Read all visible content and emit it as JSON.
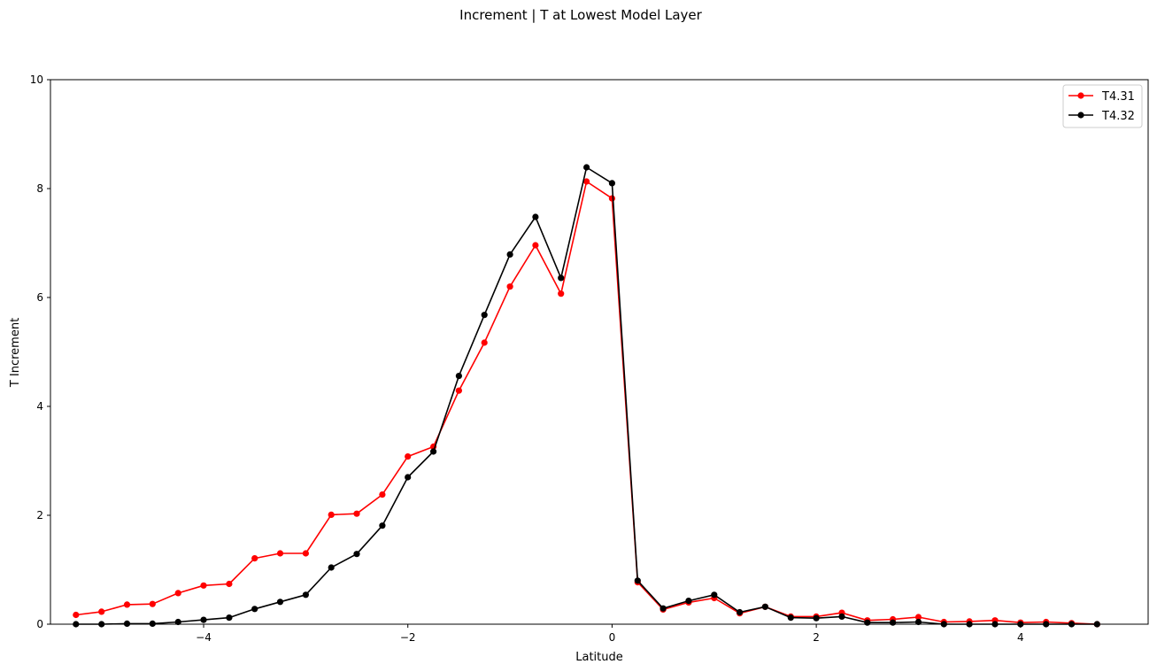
{
  "chart_data": {
    "type": "line",
    "title": "Increment | T at Lowest Model Layer",
    "xlabel": "Latitude",
    "ylabel": "T Increment",
    "xlim": [
      -5.5,
      5.25
    ],
    "ylim": [
      0,
      10
    ],
    "xticks": [
      -4,
      -2,
      0,
      2,
      4
    ],
    "yticks": [
      0,
      2,
      4,
      6,
      8,
      10
    ],
    "grid": false,
    "legend_position": "top-right",
    "x": [
      -5.25,
      -5.0,
      -4.75,
      -4.5,
      -4.25,
      -4.0,
      -3.75,
      -3.5,
      -3.25,
      -3.0,
      -2.75,
      -2.5,
      -2.25,
      -2.0,
      -1.75,
      -1.5,
      -1.25,
      -1.0,
      -0.75,
      -0.5,
      -0.25,
      0.0,
      0.25,
      0.5,
      0.75,
      1.0,
      1.25,
      1.5,
      1.75,
      2.0,
      2.25,
      2.5,
      2.75,
      3.0,
      3.25,
      3.5,
      3.75,
      4.0,
      4.25,
      4.5,
      4.75
    ],
    "series": [
      {
        "name": "T4.31",
        "color": "#ff0000",
        "values": [
          0.17,
          0.23,
          0.36,
          0.37,
          0.57,
          0.71,
          0.74,
          1.21,
          1.3,
          1.3,
          2.01,
          2.03,
          2.38,
          3.08,
          3.26,
          4.29,
          5.17,
          6.2,
          6.96,
          6.07,
          8.13,
          7.82,
          0.77,
          0.27,
          0.4,
          0.48,
          0.2,
          0.32,
          0.14,
          0.14,
          0.21,
          0.07,
          0.09,
          0.13,
          0.04,
          0.05,
          0.07,
          0.03,
          0.04,
          0.02,
          0.0
        ]
      },
      {
        "name": "T4.32",
        "color": "#000000",
        "values": [
          0.0,
          0.0,
          0.01,
          0.01,
          0.04,
          0.08,
          0.12,
          0.28,
          0.41,
          0.54,
          1.04,
          1.29,
          1.81,
          2.7,
          3.17,
          4.56,
          5.68,
          6.79,
          7.48,
          6.36,
          8.39,
          8.1,
          0.8,
          0.29,
          0.43,
          0.54,
          0.22,
          0.32,
          0.12,
          0.11,
          0.14,
          0.03,
          0.03,
          0.04,
          0.0,
          0.0,
          0.0,
          0.0,
          0.0,
          0.0,
          0.0
        ]
      }
    ]
  }
}
